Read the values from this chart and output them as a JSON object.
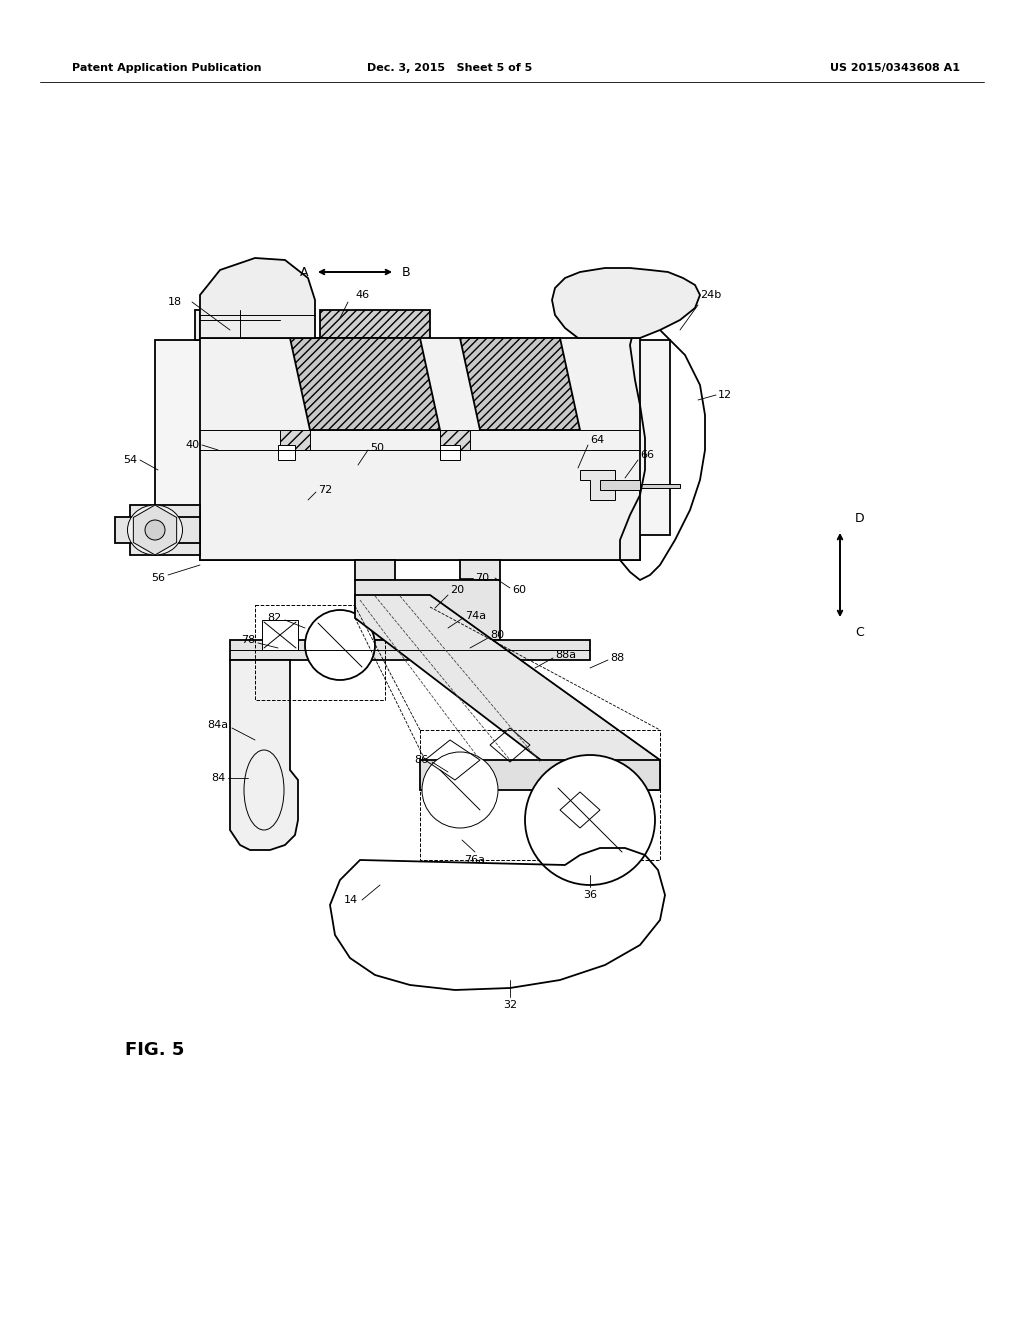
{
  "bg_color": "#ffffff",
  "header_left": "Patent Application Publication",
  "header_mid": "Dec. 3, 2015   Sheet 5 of 5",
  "header_right": "US 2015/0343608 A1",
  "fig_label": "FIG. 5",
  "lw_main": 1.3,
  "lw_thin": 0.7,
  "lw_lead": 0.6,
  "fontsize_label": 8,
  "fontsize_header": 8,
  "fontsize_fig": 13
}
